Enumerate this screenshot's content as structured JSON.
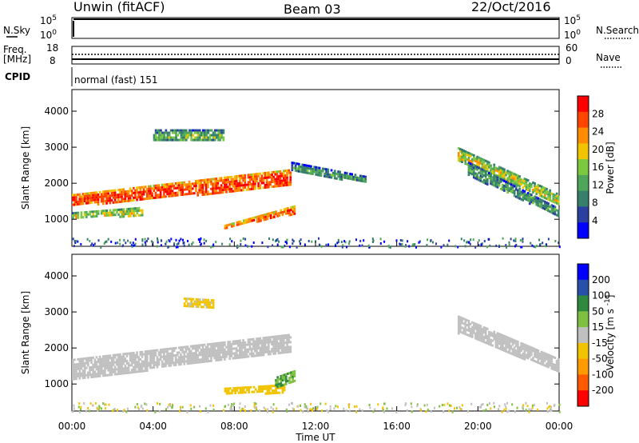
{
  "header": {
    "station": "Unwin (fitACF)",
    "beam": "Beam 03",
    "date": "22/Oct/2016"
  },
  "top_panels": {
    "nsky_label": "N.Sky",
    "nsky_ticks": [
      "10^5",
      "10^0"
    ],
    "nsearch_label": "N.Search",
    "nsearch_ticks": [
      "10^5",
      "10^0"
    ],
    "freq_label": "Freq.",
    "freq_unit": "[MHz]",
    "freq_ticks": [
      "18",
      "8"
    ],
    "nave_label": "Nave",
    "nave_ticks": [
      "60",
      "0"
    ],
    "cpid_label": "CPID",
    "cpid_text": "normal (fast) 151"
  },
  "colors": {
    "power_scale": [
      "#0000ff",
      "#2b3fa0",
      "#357f6b",
      "#4fa65a",
      "#7cc940",
      "#f2c400",
      "#ff8c00",
      "#ff4500",
      "#ff0000"
    ],
    "velocity_scale": [
      "#ff0000",
      "#ff5a00",
      "#ff9a00",
      "#f2c400",
      "#c0c0c0",
      "#80c040",
      "#2f8a3f",
      "#2850a8",
      "#0000ff"
    ]
  },
  "chart_data": [
    {
      "type": "heatmap",
      "name_ref": "power",
      "xlabel": "",
      "ylabel": "Slant Range [km]",
      "ylim": [
        250,
        4600
      ],
      "xlim": [
        0,
        24
      ],
      "yticks": [
        "1000",
        "2000",
        "3000",
        "4000"
      ],
      "colorbar": {
        "label": "Power [dB]",
        "ticks": [
          "28",
          "24",
          "20",
          "16",
          "12",
          "8",
          "4"
        ],
        "range": [
          0,
          32
        ]
      },
      "features": [
        {
          "t0": 0.0,
          "t1": 10.8,
          "r0_start": 1350,
          "r1_start": 1700,
          "r0_end": 1900,
          "r1_end": 2400,
          "level": 22
        },
        {
          "t0": 0.0,
          "t1": 3.5,
          "r0_start": 1000,
          "r1_start": 1200,
          "r0_end": 1100,
          "r1_end": 1350,
          "level": 12
        },
        {
          "t0": 7.5,
          "t1": 11.0,
          "r0_start": 750,
          "r1_start": 850,
          "r0_end": 1150,
          "r1_end": 1400,
          "level": 20
        },
        {
          "t0": 4.0,
          "t1": 7.5,
          "r0_start": 3200,
          "r1_start": 3500,
          "r0_end": 3150,
          "r1_end": 3500,
          "level": 8
        },
        {
          "t0": 10.8,
          "t1": 14.5,
          "r0_start": 2300,
          "r1_start": 2600,
          "r0_end": 2000,
          "r1_end": 2200,
          "level": 5
        },
        {
          "t0": 19.0,
          "t1": 24.0,
          "r0_start": 2600,
          "r1_start": 3000,
          "r0_end": 1400,
          "r1_end": 1700,
          "level": 12
        },
        {
          "t0": 19.5,
          "t1": 24.0,
          "r0_start": 2200,
          "r1_start": 2600,
          "r0_end": 1050,
          "r1_end": 1300,
          "level": 6
        }
      ]
    },
    {
      "type": "heatmap",
      "name_ref": "velocity",
      "xlabel": "Time UT",
      "ylabel": "Slant Range [km]",
      "ylim": [
        250,
        4600
      ],
      "xlim": [
        0,
        24
      ],
      "xticks": [
        "00:00",
        "04:00",
        "08:00",
        "12:00",
        "16:00",
        "20:00",
        "00:00"
      ],
      "yticks": [
        "1000",
        "2000",
        "3000",
        "4000"
      ],
      "colorbar": {
        "label": "Velocity [m s^-1]",
        "ticks": [
          "200",
          "100",
          "50",
          "15",
          "-15",
          "-50",
          "-100",
          "-200"
        ],
        "range": [
          -250,
          250
        ]
      },
      "features": [
        {
          "t0": 0.0,
          "t1": 10.8,
          "r0_start": 1100,
          "r1_start": 1700,
          "r0_end": 1900,
          "r1_end": 2400,
          "level": 0
        },
        {
          "t0": 7.5,
          "t1": 10.5,
          "r0_start": 700,
          "r1_start": 900,
          "r0_end": 750,
          "r1_end": 1000,
          "level": -60
        },
        {
          "t0": 10.0,
          "t1": 11.0,
          "r0_start": 900,
          "r1_start": 1200,
          "r0_end": 1100,
          "r1_end": 1400,
          "level": 80
        },
        {
          "t0": 5.5,
          "t1": 7.0,
          "r0_start": 3100,
          "r1_start": 3400,
          "r0_end": 3100,
          "r1_end": 3350,
          "level": -40
        },
        {
          "t0": 19.0,
          "t1": 24.0,
          "r0_start": 2400,
          "r1_start": 2900,
          "r0_end": 1300,
          "r1_end": 1700,
          "level": 0
        }
      ]
    }
  ]
}
